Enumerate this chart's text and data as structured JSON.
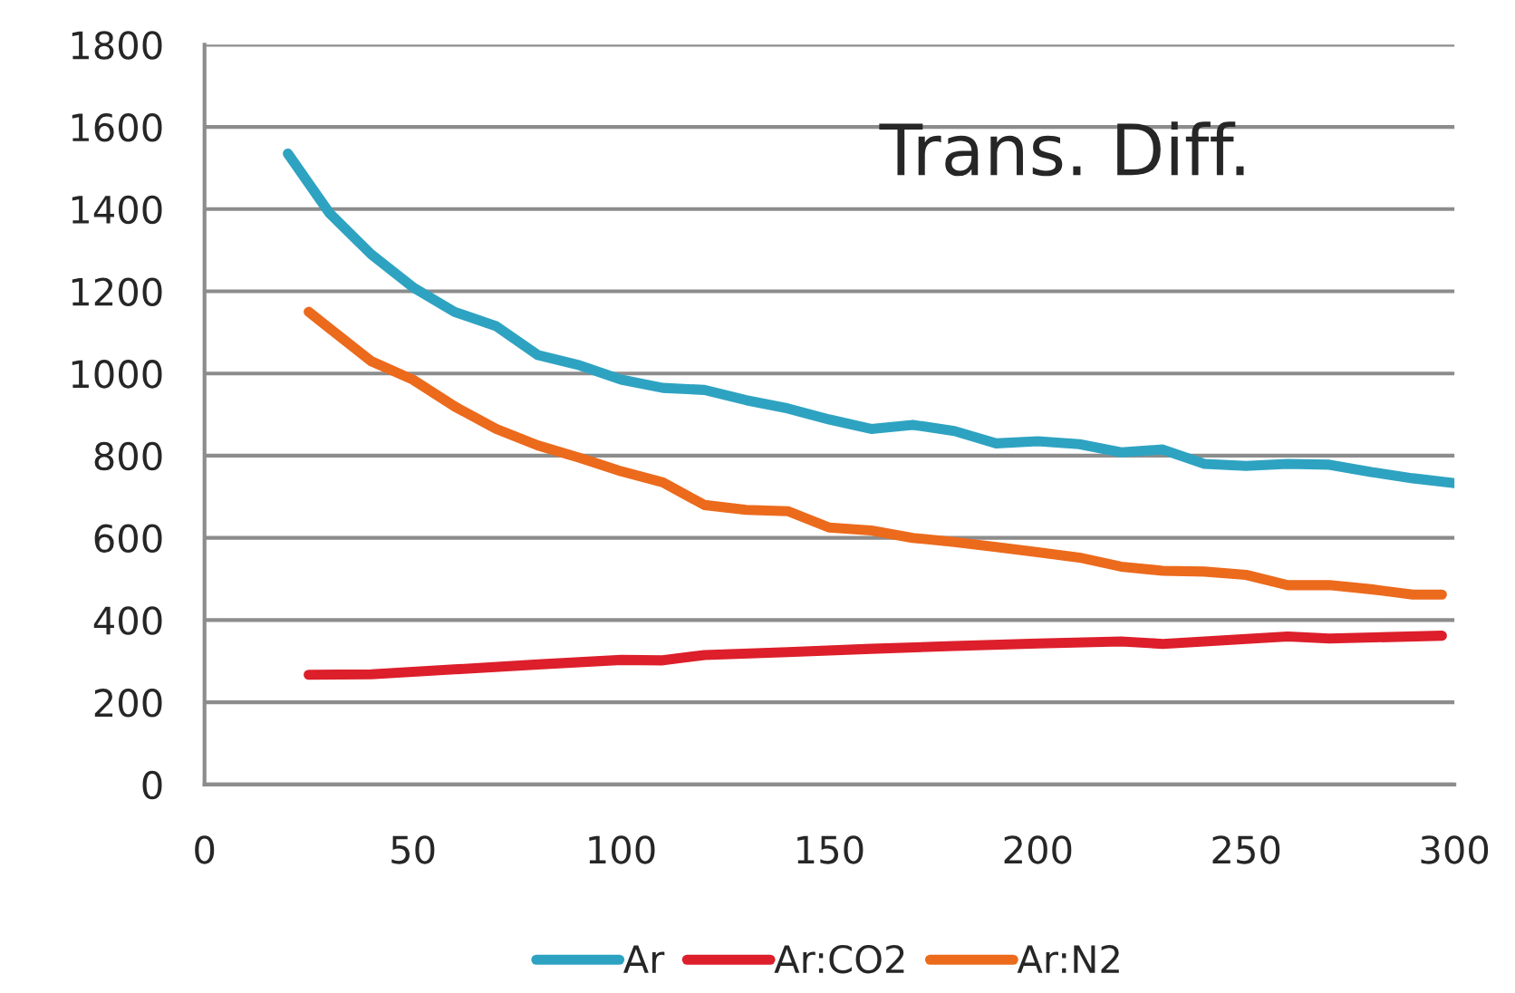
{
  "chart_data": {
    "type": "line",
    "title": "Trans. Diff.",
    "series": [
      {
        "name": "Ar",
        "color": "#2ea3c1",
        "x": [
          20,
          30,
          40,
          50,
          60,
          70,
          80,
          90,
          100,
          110,
          120,
          130,
          140,
          150,
          160,
          170,
          180,
          190,
          200,
          210,
          220,
          230,
          240,
          250,
          260,
          270,
          280,
          290,
          300
        ],
        "values": [
          1535,
          1390,
          1290,
          1210,
          1150,
          1115,
          1045,
          1020,
          985,
          965,
          960,
          935,
          915,
          888,
          865,
          875,
          860,
          830,
          835,
          828,
          808,
          815,
          780,
          775,
          780,
          778,
          760,
          745,
          733
        ]
      },
      {
        "name": "Ar:CO2",
        "color": "#dc1f2b",
        "x": [
          25,
          40,
          60,
          80,
          100,
          110,
          120,
          140,
          160,
          180,
          200,
          220,
          230,
          240,
          260,
          270,
          297
        ],
        "values": [
          267,
          268,
          280,
          292,
          303,
          302,
          315,
          322,
          330,
          337,
          343,
          348,
          342,
          348,
          360,
          355,
          362
        ]
      },
      {
        "name": "Ar:N2",
        "color": "#ec6a1c",
        "x": [
          25,
          30,
          40,
          50,
          60,
          70,
          80,
          90,
          100,
          110,
          120,
          130,
          140,
          150,
          160,
          170,
          180,
          190,
          200,
          210,
          220,
          230,
          240,
          250,
          260,
          270,
          280,
          290,
          297
        ],
        "values": [
          1150,
          1110,
          1030,
          985,
          920,
          865,
          825,
          795,
          762,
          735,
          680,
          668,
          665,
          625,
          618,
          600,
          590,
          578,
          565,
          552,
          530,
          520,
          518,
          510,
          485,
          485,
          475,
          462,
          462
        ]
      }
    ],
    "xlim": [
      0,
      300
    ],
    "xticks": [
      0,
      50,
      100,
      150,
      200,
      250,
      300
    ],
    "ylim": [
      0,
      1800
    ],
    "yticks": [
      0,
      200,
      400,
      600,
      800,
      1000,
      1200,
      1400,
      1600,
      1800
    ],
    "grid": "y",
    "legend": "bottom",
    "marker": "none",
    "line_style": "solid"
  }
}
